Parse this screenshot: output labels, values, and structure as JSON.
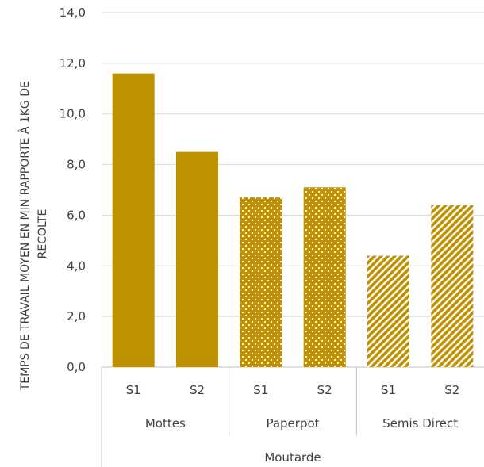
{
  "chart_data": {
    "type": "bar",
    "ylabel": "TEMPS DE TRAVAIL MOYEN EN MIN RAPPORTE À 1KG DE RECOLTE",
    "ylabel_lines": [
      "TEMPS DE TRAVAIL MOYEN EN MIN RAPPORTE À 1KG DE",
      "RECOLTE"
    ],
    "ylim": [
      0,
      14
    ],
    "yticks": [
      "0,0",
      "2,0",
      "4,0",
      "6,0",
      "8,0",
      "10,0",
      "12,0",
      "14,0"
    ],
    "grid": true,
    "top_group": "Moutarde",
    "groups": [
      {
        "name": "Mottes",
        "pattern": "solid",
        "bars": [
          {
            "label": "S1",
            "value": 11.6
          },
          {
            "label": "S2",
            "value": 8.5
          }
        ]
      },
      {
        "name": "Paperpot",
        "pattern": "dots",
        "bars": [
          {
            "label": "S1",
            "value": 6.7
          },
          {
            "label": "S2",
            "value": 7.1
          }
        ]
      },
      {
        "name": "Semis Direct",
        "pattern": "stripes",
        "bars": [
          {
            "label": "S1",
            "value": 4.4
          },
          {
            "label": "S2",
            "value": 6.4
          }
        ]
      }
    ],
    "bar_color": "#BF9000"
  }
}
